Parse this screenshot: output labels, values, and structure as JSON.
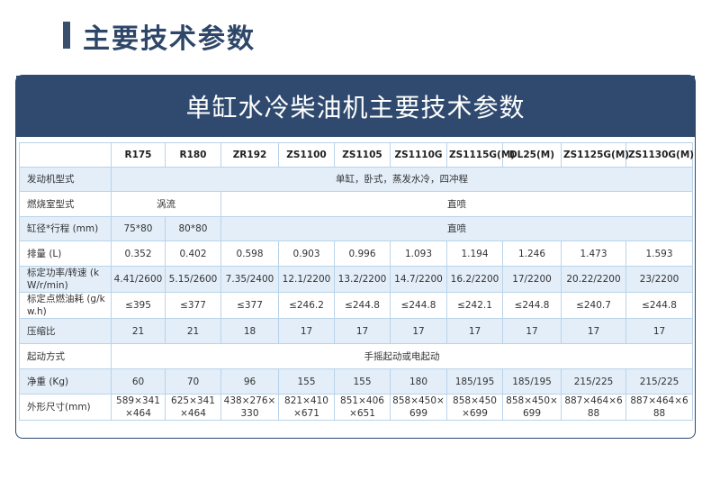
{
  "page_title": "主要技术参数",
  "panel_title": "单缸水冷柴油机主要技术参数",
  "table": {
    "header": [
      "",
      "R175",
      "R180",
      "ZR192",
      "ZS1100",
      "ZS1105",
      "ZS1110G",
      "ZS1115G(M)",
      "DL25(M)",
      "ZS1125G(M)",
      "ZS1130G(M)"
    ],
    "engine_type": {
      "label": "发动机型式",
      "value": "单缸，卧式，蒸发水冷，四冲程"
    },
    "combustion": {
      "label": "燃烧室型式",
      "swirl": "涡流",
      "direct": "直喷"
    },
    "bore_stroke": {
      "label": "缸径*行程 (mm)",
      "r175": "75*80",
      "r180": "80*80",
      "rest": "直喷"
    },
    "displacement": {
      "label": "排量 (L)",
      "values": [
        "0.352",
        "0.402",
        "0.598",
        "0.903",
        "0.996",
        "1.093",
        "1.194",
        "1.246",
        "1.473",
        "1.593"
      ]
    },
    "power": {
      "label": "标定功率/转速 (kW/r/min)",
      "values": [
        "4.41/2600",
        "5.15/2600",
        "7.35/2400",
        "12.1/2200",
        "13.2/2200",
        "14.7/2200",
        "16.2/2200",
        "17/2200",
        "20.22/2200",
        "23/2200"
      ]
    },
    "fuel": {
      "label": "标定点燃油耗 (g/kw.h)",
      "values": [
        "≤395",
        "≤377",
        "≤377",
        "≤246.2",
        "≤244.8",
        "≤244.8",
        "≤242.1",
        "≤244.8",
        "≤240.7",
        "≤244.8"
      ]
    },
    "compression": {
      "label": "压缩比",
      "values": [
        "21",
        "21",
        "18",
        "17",
        "17",
        "17",
        "17",
        "17",
        "17",
        "17"
      ]
    },
    "start": {
      "label": "起动方式",
      "value": "手摇起动或电起动"
    },
    "weight": {
      "label": "净重 (Kg)",
      "values": [
        "60",
        "70",
        "96",
        "155",
        "155",
        "180",
        "185/195",
        "185/195",
        "215/225",
        "215/225"
      ]
    },
    "dimensions": {
      "label": "外形尺寸(mm)",
      "values": [
        "589×341×464",
        "625×341×464",
        "438×276×330",
        "821×410×671",
        "851×406×651",
        "858×450×699",
        "858×450×699",
        "858×450×699",
        "887×464×688",
        "887×464×688"
      ]
    }
  }
}
